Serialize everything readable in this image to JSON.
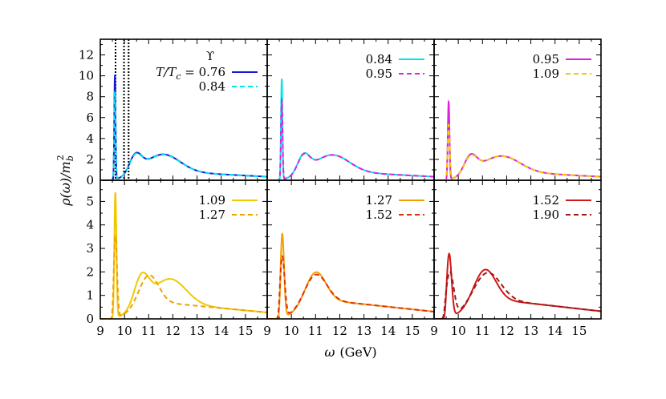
{
  "figure": {
    "xlabel_main": "ω",
    "xlabel_unit": "(GeV)",
    "ylabel_text": "ρ(ω)/m",
    "ylabel_sub": "b",
    "ylabel_sup": "2",
    "legend_header_symbol": "ϒ",
    "legend_prefix": "T/T",
    "legend_prefix_sub": "c",
    "legend_prefix_eq": " = "
  },
  "chart_data": [
    {
      "type": "line",
      "panel": "top-left",
      "xlim": [
        9,
        15.9
      ],
      "ylim": [
        0,
        13.5
      ],
      "x_ticks": [],
      "y_ticks": [
        "0",
        "2",
        "4",
        "6",
        "8",
        "10",
        "12"
      ],
      "y_tick_values": [
        0,
        2,
        4,
        6,
        8,
        10,
        12
      ],
      "vlines": [
        9.63,
        9.98,
        10.17
      ],
      "series": [
        {
          "name": "0.76",
          "color": "#1a1ad6",
          "dash": false,
          "peak": {
            "x": 9.6,
            "h": 11.8,
            "w": 0.028
          },
          "turn_on": 9.55,
          "bumps": [
            {
              "x": 10.45,
              "h": 1.7,
              "w": 0.25
            },
            {
              "x": 11.6,
              "h": 1.65,
              "w": 0.7
            }
          ],
          "cont": 1.0,
          "tail": 0.2
        },
        {
          "name": "0.84",
          "color": "#00e5e5",
          "dash": true,
          "peak": {
            "x": 9.6,
            "h": 9.9,
            "w": 0.03
          },
          "turn_on": 9.55,
          "bumps": [
            {
              "x": 10.45,
              "h": 1.65,
              "w": 0.25
            },
            {
              "x": 11.6,
              "h": 1.62,
              "w": 0.7
            }
          ],
          "cont": 1.0,
          "tail": 0.2
        }
      ]
    },
    {
      "type": "line",
      "panel": "top-middle",
      "xlim": [
        9,
        15.9
      ],
      "ylim": [
        0,
        13.5
      ],
      "x_ticks": [],
      "y_ticks": [],
      "series": [
        {
          "name": "0.84",
          "color": "#00e5e5",
          "dash": false,
          "peak": {
            "x": 9.6,
            "h": 10.0,
            "w": 0.03
          },
          "turn_on": 9.5,
          "bumps": [
            {
              "x": 10.5,
              "h": 1.7,
              "w": 0.25
            },
            {
              "x": 11.7,
              "h": 1.6,
              "w": 0.7
            }
          ],
          "cont": 1.0,
          "tail": 0.2
        },
        {
          "name": "0.95",
          "color": "#e020e0",
          "dash": true,
          "peak": {
            "x": 9.6,
            "h": 7.9,
            "w": 0.033
          },
          "turn_on": 9.5,
          "bumps": [
            {
              "x": 10.5,
              "h": 1.65,
              "w": 0.25
            },
            {
              "x": 11.7,
              "h": 1.6,
              "w": 0.7
            }
          ],
          "cont": 1.0,
          "tail": 0.2
        }
      ]
    },
    {
      "type": "line",
      "panel": "top-right",
      "xlim": [
        9,
        15.9
      ],
      "ylim": [
        0,
        13.5
      ],
      "x_ticks": [],
      "y_ticks": [],
      "series": [
        {
          "name": "0.95",
          "color": "#e020e0",
          "dash": false,
          "peak": {
            "x": 9.6,
            "h": 7.7,
            "w": 0.035
          },
          "turn_on": 9.5,
          "bumps": [
            {
              "x": 10.5,
              "h": 1.65,
              "w": 0.26
            },
            {
              "x": 11.8,
              "h": 1.5,
              "w": 0.75
            }
          ],
          "cont": 1.0,
          "tail": 0.25
        },
        {
          "name": "1.09",
          "color": "#f0c800",
          "dash": true,
          "peak": {
            "x": 9.6,
            "h": 5.4,
            "w": 0.045
          },
          "turn_on": 9.5,
          "bumps": [
            {
              "x": 10.5,
              "h": 1.55,
              "w": 0.27
            },
            {
              "x": 11.8,
              "h": 1.5,
              "w": 0.75
            }
          ],
          "cont": 1.0,
          "tail": 0.25
        }
      ]
    },
    {
      "type": "line",
      "panel": "bottom-left",
      "xlim": [
        9,
        15.9
      ],
      "ylim": [
        0,
        5.9
      ],
      "x_ticks": [
        "9",
        "10",
        "11",
        "12",
        "13",
        "14",
        "15"
      ],
      "x_tick_values": [
        9,
        10,
        11,
        12,
        13,
        14,
        15
      ],
      "y_ticks": [
        "0",
        "1",
        "2",
        "3",
        "4",
        "5"
      ],
      "y_tick_values": [
        0,
        1,
        2,
        3,
        4,
        5
      ],
      "series": [
        {
          "name": "1.09",
          "color": "#f0c800",
          "dash": false,
          "peak": {
            "x": 9.62,
            "h": 5.5,
            "w": 0.045
          },
          "turn_on": 9.52,
          "bumps": [
            {
              "x": 10.7,
              "h": 1.25,
              "w": 0.3
            },
            {
              "x": 11.9,
              "h": 1.05,
              "w": 0.65
            }
          ],
          "cont": 0.8,
          "tail": 0.25
        },
        {
          "name": "1.27",
          "color": "#f0a000",
          "dash": true,
          "peak": {
            "x": 9.62,
            "h": 3.5,
            "w": 0.07
          },
          "turn_on": 9.5,
          "bumps": [
            {
              "x": 11.0,
              "h": 1.25,
              "w": 0.4
            }
          ],
          "cont": 0.8,
          "tail": 0.25
        }
      ]
    },
    {
      "type": "line",
      "panel": "bottom-middle",
      "xlim": [
        9,
        15.9
      ],
      "ylim": [
        0,
        5.9
      ],
      "x_ticks": [
        "9",
        "10",
        "11",
        "12",
        "13",
        "14",
        "15"
      ],
      "x_tick_values": [
        9,
        10,
        11,
        12,
        13,
        14,
        15
      ],
      "y_ticks": [],
      "series": [
        {
          "name": "1.27",
          "color": "#f0a000",
          "dash": false,
          "peak": {
            "x": 9.62,
            "h": 3.6,
            "w": 0.075
          },
          "turn_on": 9.5,
          "bumps": [
            {
              "x": 11.0,
              "h": 1.3,
              "w": 0.42
            }
          ],
          "cont": 0.9,
          "tail": 0.25
        },
        {
          "name": "1.52",
          "color": "#e03010",
          "dash": true,
          "peak": {
            "x": 9.62,
            "h": 2.6,
            "w": 0.1
          },
          "turn_on": 9.48,
          "bumps": [
            {
              "x": 11.0,
              "h": 1.2,
              "w": 0.45
            }
          ],
          "cont": 0.9,
          "tail": 0.25
        }
      ]
    },
    {
      "type": "line",
      "panel": "bottom-right",
      "xlim": [
        9,
        15.9
      ],
      "ylim": [
        0,
        5.9
      ],
      "x_ticks": [
        "9",
        "10",
        "11",
        "12",
        "13",
        "14",
        "15"
      ],
      "x_tick_values": [
        9,
        10,
        11,
        12,
        13,
        14,
        15
      ],
      "y_ticks": [],
      "series": [
        {
          "name": "1.52",
          "color": "#d01818",
          "dash": false,
          "peak": {
            "x": 9.62,
            "h": 2.7,
            "w": 0.1
          },
          "turn_on": 9.45,
          "bumps": [
            {
              "x": 11.1,
              "h": 1.35,
              "w": 0.45
            }
          ],
          "cont": 0.95,
          "tail": 0.25
        },
        {
          "name": "1.90",
          "color": "#a01818",
          "dash": true,
          "peak": {
            "x": 9.65,
            "h": 1.9,
            "w": 0.16
          },
          "turn_on": 9.42,
          "bumps": [
            {
              "x": 11.2,
              "h": 1.2,
              "w": 0.55
            }
          ],
          "cont": 0.95,
          "tail": 0.25
        }
      ]
    }
  ]
}
